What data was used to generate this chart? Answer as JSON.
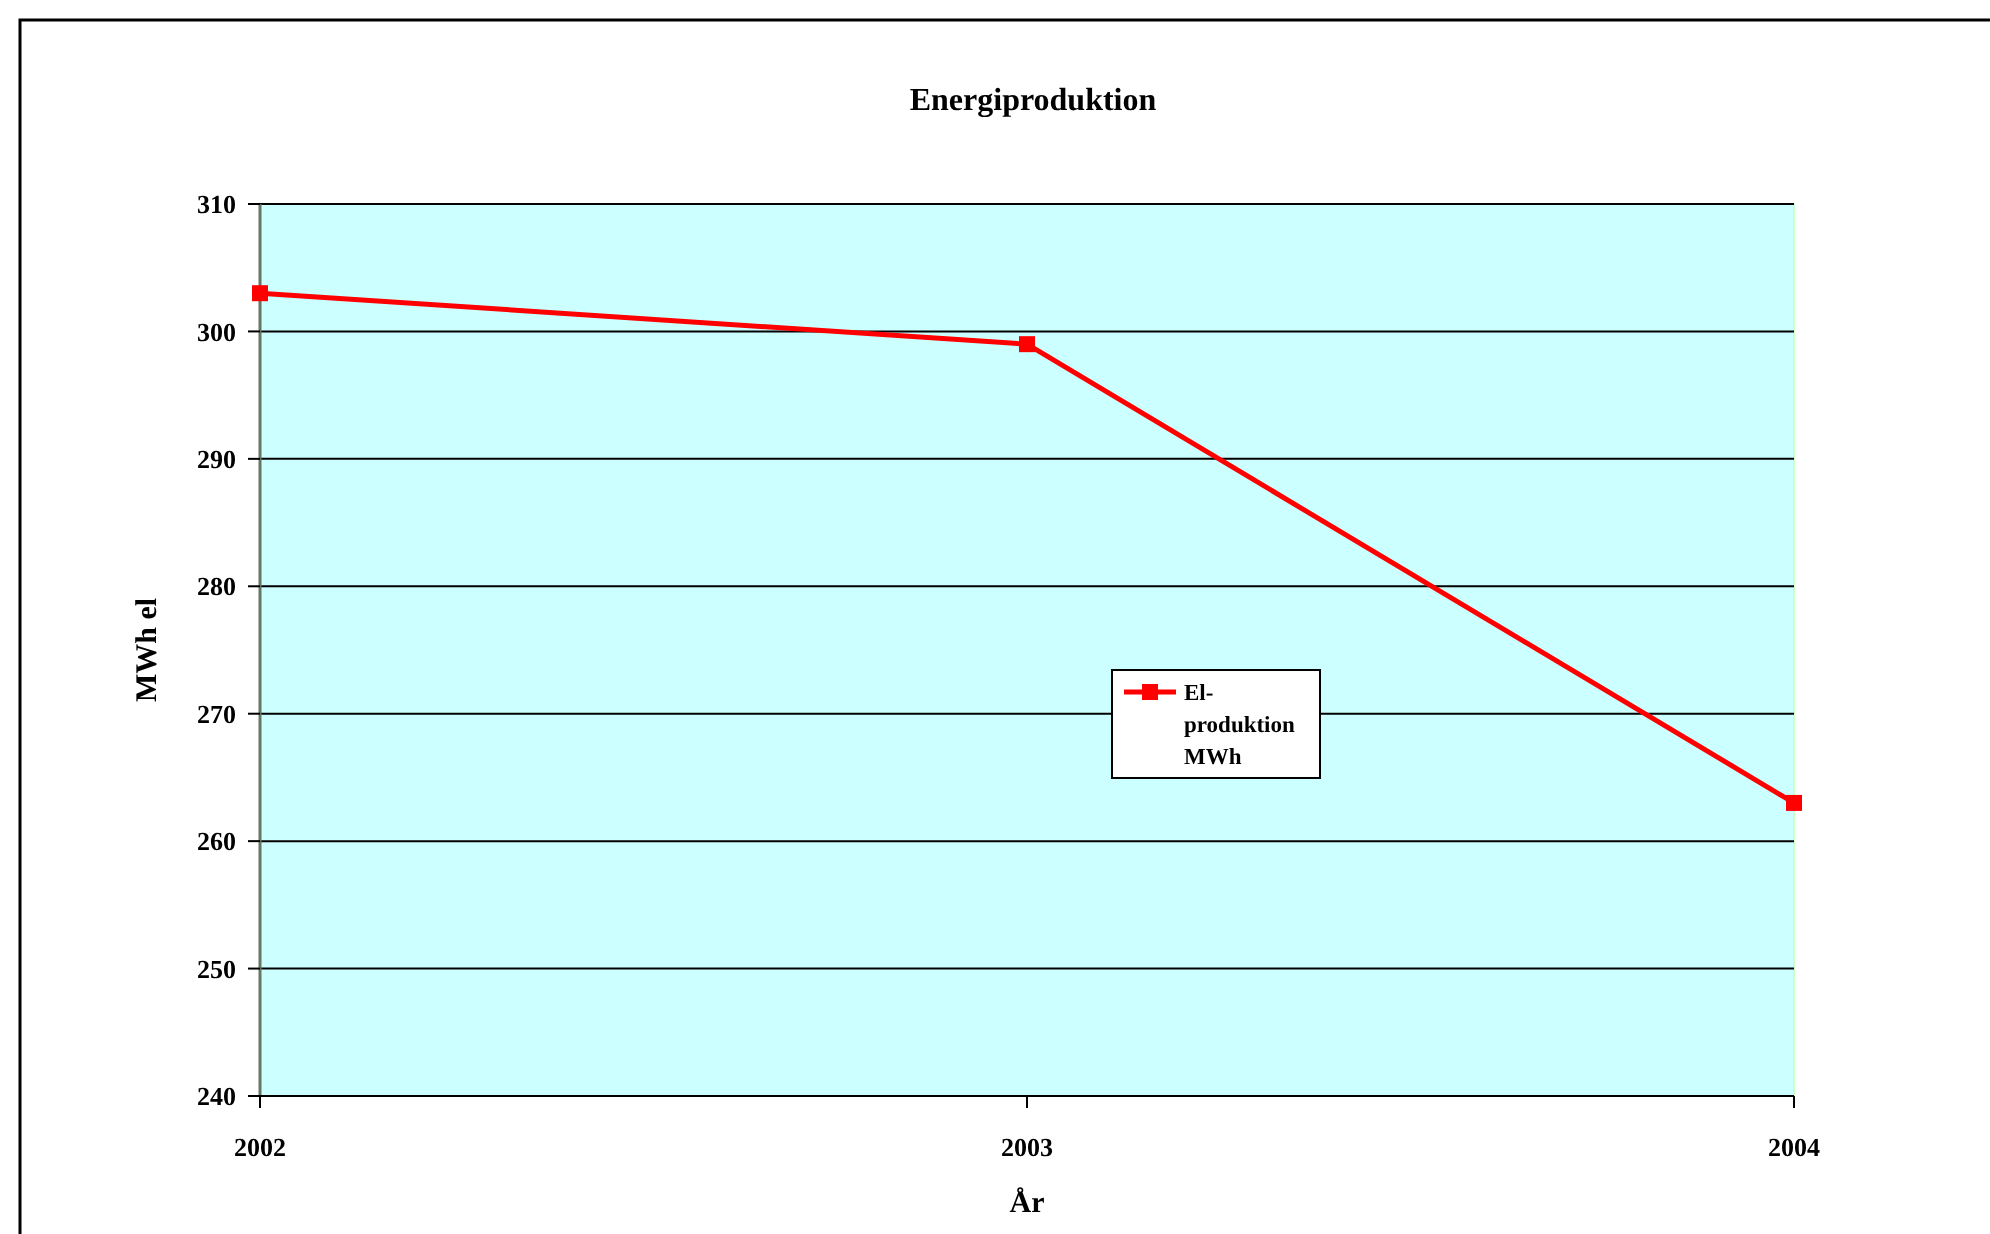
{
  "chart_data": {
    "type": "line",
    "title": "Energiproduktion",
    "xlabel": "År",
    "ylabel": "MWh el",
    "x": [
      2002,
      2003,
      2004
    ],
    "xlim": [
      2002,
      2004
    ],
    "xticks": [
      2002,
      2003,
      2004
    ],
    "ylim": [
      240,
      310
    ],
    "yticks": [
      240,
      250,
      260,
      270,
      280,
      290,
      300,
      310
    ],
    "series": [
      {
        "name": "El-produktion MWh",
        "color": "#ff0000",
        "values": [
          303,
          299,
          263
        ]
      }
    ],
    "grid": "y",
    "legend": "center",
    "marker": "square",
    "line_style": "solid"
  }
}
